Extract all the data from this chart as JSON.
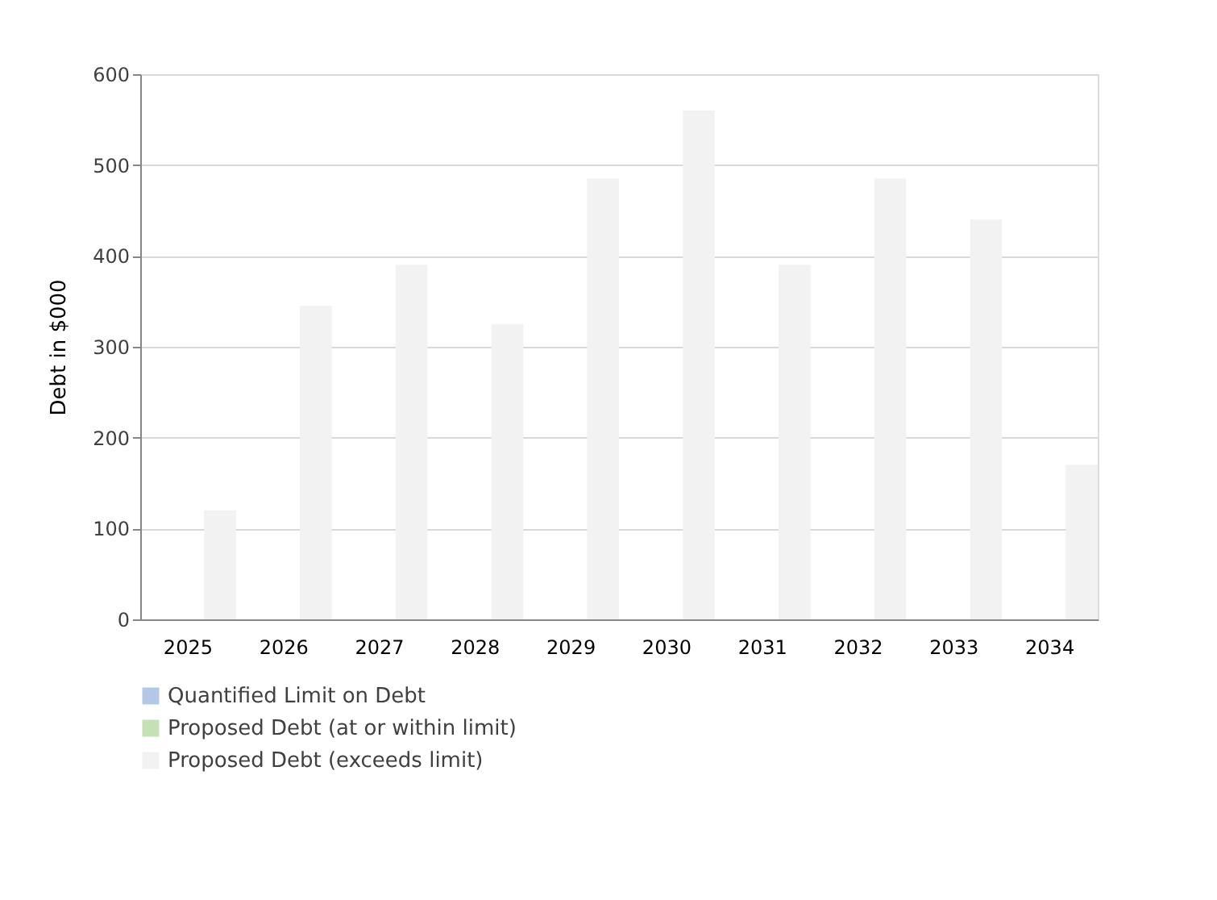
{
  "chart_data": {
    "type": "bar",
    "ylabel": "Debt in $000",
    "categories": [
      "2025",
      "2026",
      "2027",
      "2028",
      "2029",
      "2030",
      "2031",
      "2032",
      "2033",
      "2034"
    ],
    "series": [
      {
        "name": "Quantified Limit on Debt",
        "color": "#b4c7e7",
        "values": [
          null,
          null,
          null,
          null,
          null,
          null,
          null,
          null,
          null,
          null
        ]
      },
      {
        "name": "Proposed Debt (at or within limit)",
        "color": "#c5e0b4",
        "values": [
          null,
          null,
          null,
          null,
          null,
          null,
          null,
          null,
          null,
          null
        ]
      },
      {
        "name": "Proposed Debt (exceeds limit)",
        "color": "#f2f2f2",
        "values": [
          120,
          345,
          390,
          325,
          485,
          560,
          390,
          485,
          440,
          170
        ]
      }
    ],
    "ylim": [
      0,
      600
    ],
    "yticks": [
      0,
      100,
      200,
      300,
      400,
      500,
      600
    ],
    "grid": "y",
    "legend": "bottom"
  }
}
